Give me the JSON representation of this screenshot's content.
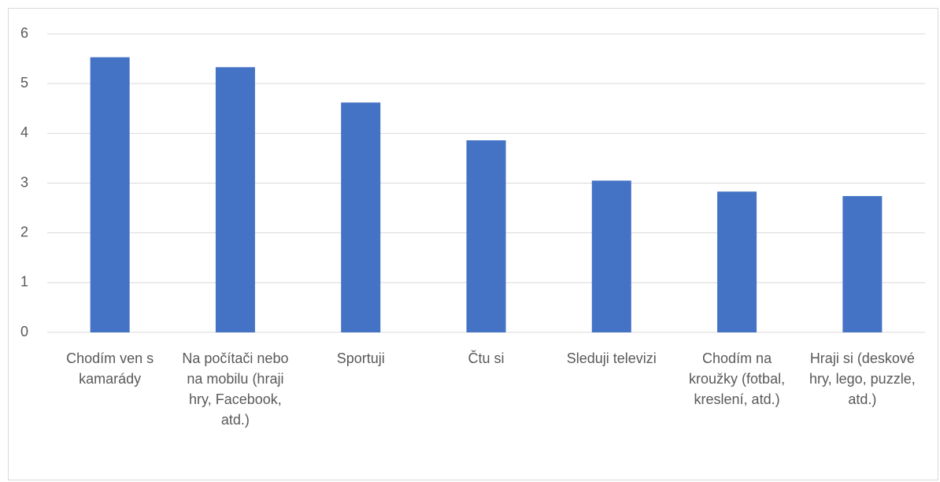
{
  "chart_data": {
    "type": "bar",
    "categories": [
      "Chodím ven s kamarády",
      "Na počítači nebo na mobilu (hraji hry, Facebook, atd.)",
      "Sportuji",
      "Čtu si",
      "Sleduji televizi",
      "Chodím na kroužky (fotbal, kreslení, atd.)",
      "Hraji si (deskové hry, lego, puzzle, atd.)"
    ],
    "values": [
      5.53,
      5.33,
      4.62,
      3.86,
      3.05,
      2.83,
      2.74
    ],
    "color": "#4472c4",
    "ylim": [
      0,
      6
    ],
    "yticks": [
      0,
      1,
      2,
      3,
      4,
      5,
      6
    ],
    "grid": true
  }
}
